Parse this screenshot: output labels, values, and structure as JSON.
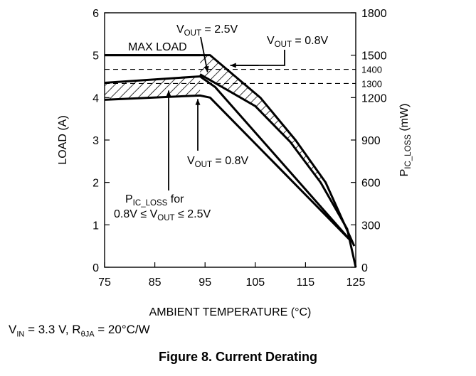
{
  "chart_data": {
    "type": "line",
    "xlabel": "AMBIENT TEMPERATURE (°C)",
    "ylabel": "LOAD (A)",
    "y2label": {
      "main": "P",
      "sub": "IC_LOSS",
      "tail": " (mW)"
    },
    "x_ticks": [
      "75",
      "85",
      "95",
      "105",
      "115",
      "125"
    ],
    "y_ticks": [
      "0",
      "1",
      "2",
      "3",
      "4",
      "5",
      "6"
    ],
    "y2_ticks": [
      "0",
      "300",
      "600",
      "900",
      "1200",
      "1500",
      "1800"
    ],
    "y2_extra_ticks": [
      {
        "value": 1400,
        "label": "1400"
      },
      {
        "value": 1300,
        "label": "1300"
      }
    ],
    "xlim": [
      75,
      125
    ],
    "ylim": [
      0,
      6
    ],
    "y2lim": [
      0,
      1800
    ],
    "grid": false,
    "series": [
      {
        "name": "MAX LOAD",
        "x": [
          75,
          94
        ],
        "y": [
          5,
          5
        ]
      },
      {
        "x": [
          75,
          94,
          96,
          106,
          113,
          119,
          124.7
        ],
        "y": [
          5,
          5,
          5,
          4,
          3,
          2,
          0.5
        ]
      },
      {
        "x": [
          94,
          105,
          112,
          118,
          123.3,
          125
        ],
        "y": [
          4.55,
          3.8,
          2.95,
          2.0,
          0.9,
          0
        ]
      },
      {
        "x": [
          75,
          94,
          97,
          124.2
        ],
        "y": [
          4.35,
          4.5,
          4.25,
          0.6
        ]
      },
      {
        "x": [
          75,
          94,
          96,
          124.2
        ],
        "y": [
          3.95,
          4.05,
          4.0,
          0.6
        ]
      }
    ],
    "annotations": {
      "max_load": "MAX LOAD",
      "vout_25": {
        "main": "V",
        "sub": "OUT",
        "tail": " = 2.5V"
      },
      "vout_08_top": {
        "main": "V",
        "sub": "OUT",
        "tail": " = 0.8V"
      },
      "vout_08_mid": {
        "main": "V",
        "sub": "OUT",
        "tail": " = 0.8V"
      },
      "pic_loss": {
        "main": "P",
        "sub": "IC_LOSS",
        "tail": " for"
      },
      "pic_range": {
        "a": "0.8V ≤ V",
        "sub": "OUT",
        "b": " ≤ 2.5V"
      }
    }
  },
  "conditions": {
    "vin": "V",
    "vin_sub": "IN",
    "vin_val": " = 3.3 V, R",
    "r_sub": "θJA",
    "r_val": " = 20°C/W"
  },
  "caption": "Figure 8. Current Derating"
}
